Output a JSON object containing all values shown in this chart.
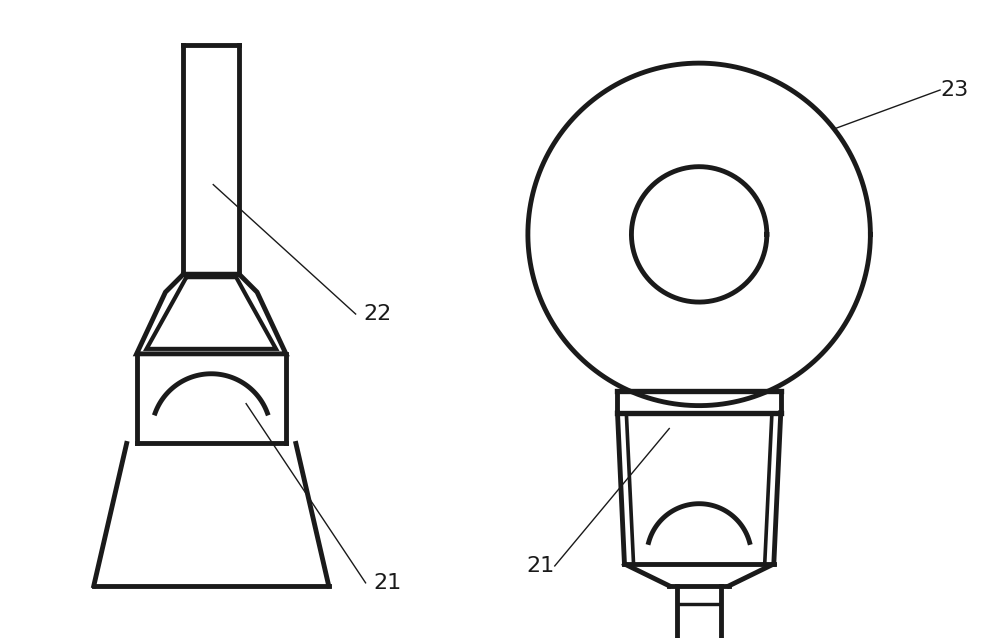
{
  "bg_color": "#ffffff",
  "line_color": "#1a1a1a",
  "lw": 3.5,
  "lw_thin": 1.0,
  "fs": 16,
  "fig_w": 10.0,
  "fig_h": 6.39,
  "labels": {
    "22": "22",
    "21": "21",
    "23": "23"
  }
}
